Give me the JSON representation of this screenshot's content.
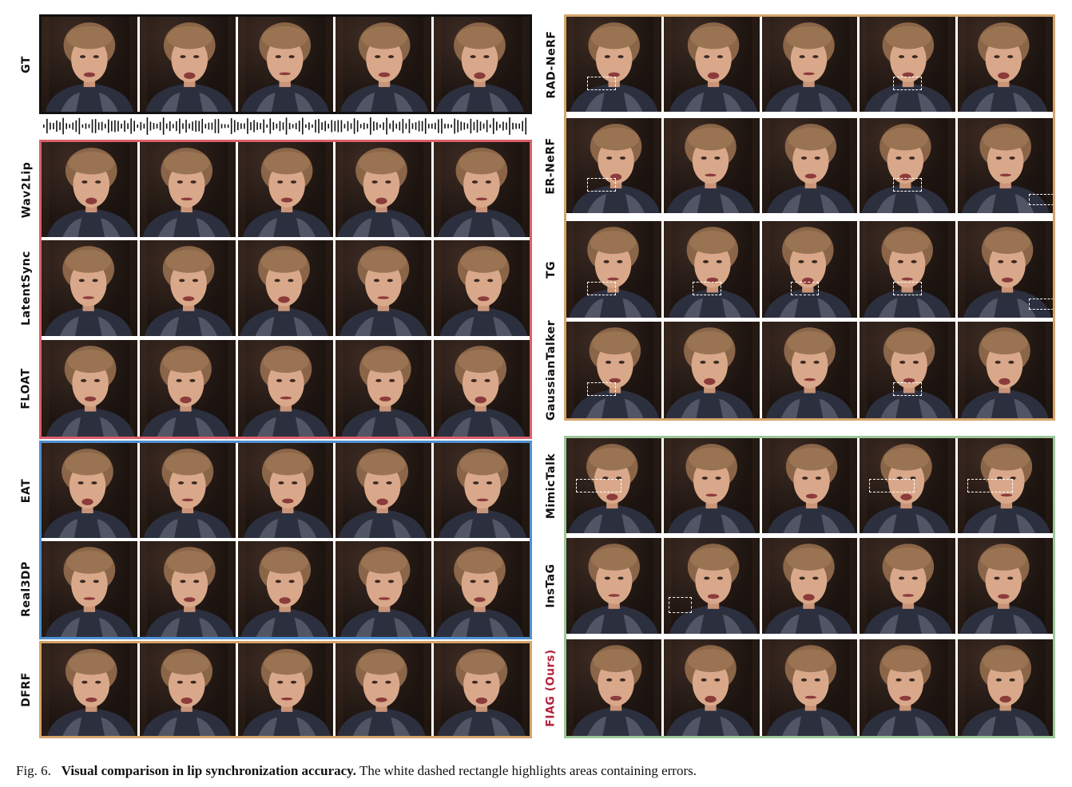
{
  "figure": {
    "rows_left": [
      {
        "id": "gt",
        "label": "GT",
        "errors": []
      },
      {
        "id": "wav2lip",
        "label": "Wav2Lip",
        "errors": []
      },
      {
        "id": "latentsync",
        "label": "LatentSync",
        "errors": []
      },
      {
        "id": "float",
        "label": "FLOAT",
        "errors": []
      },
      {
        "id": "eat",
        "label": "EAT",
        "errors": []
      },
      {
        "id": "real3dp",
        "label": "Real3DP",
        "errors": []
      },
      {
        "id": "dfrf",
        "label": "DFRF",
        "errors": []
      }
    ],
    "rows_right": [
      {
        "id": "rad-nerf",
        "label": "RAD-NeRF",
        "errors": [
          1,
          4
        ]
      },
      {
        "id": "er-nerf",
        "label": "ER-NeRF",
        "errors": [
          1,
          4,
          5
        ]
      },
      {
        "id": "tg",
        "label": "TG",
        "errors": [
          1,
          2,
          3,
          4,
          5
        ]
      },
      {
        "id": "gaussiantalker",
        "label": "GaussianTalker",
        "errors": [
          1,
          4
        ]
      },
      {
        "id": "mimictalk",
        "label": "MimicTalk",
        "errors": [
          1,
          4,
          5
        ]
      },
      {
        "id": "instag",
        "label": "InsTaG",
        "errors": [
          2
        ]
      },
      {
        "id": "fiag",
        "label": "FIAG (Ours)",
        "errors": []
      }
    ],
    "frames_per_row": 5
  },
  "caption": {
    "prefix": "Fig. 6.",
    "title": "Visual comparison in lip synchronization accuracy.",
    "text": "The white dashed rectangle highlights areas containing errors."
  },
  "colors": {
    "gt_border": "#111111",
    "lipsync_group": "#d9606a",
    "emotion_group": "#4f8fd0",
    "nerf_group": "#d4a46a",
    "gaussian_group": "#9cc79a",
    "ours_label": "#b3243c"
  }
}
